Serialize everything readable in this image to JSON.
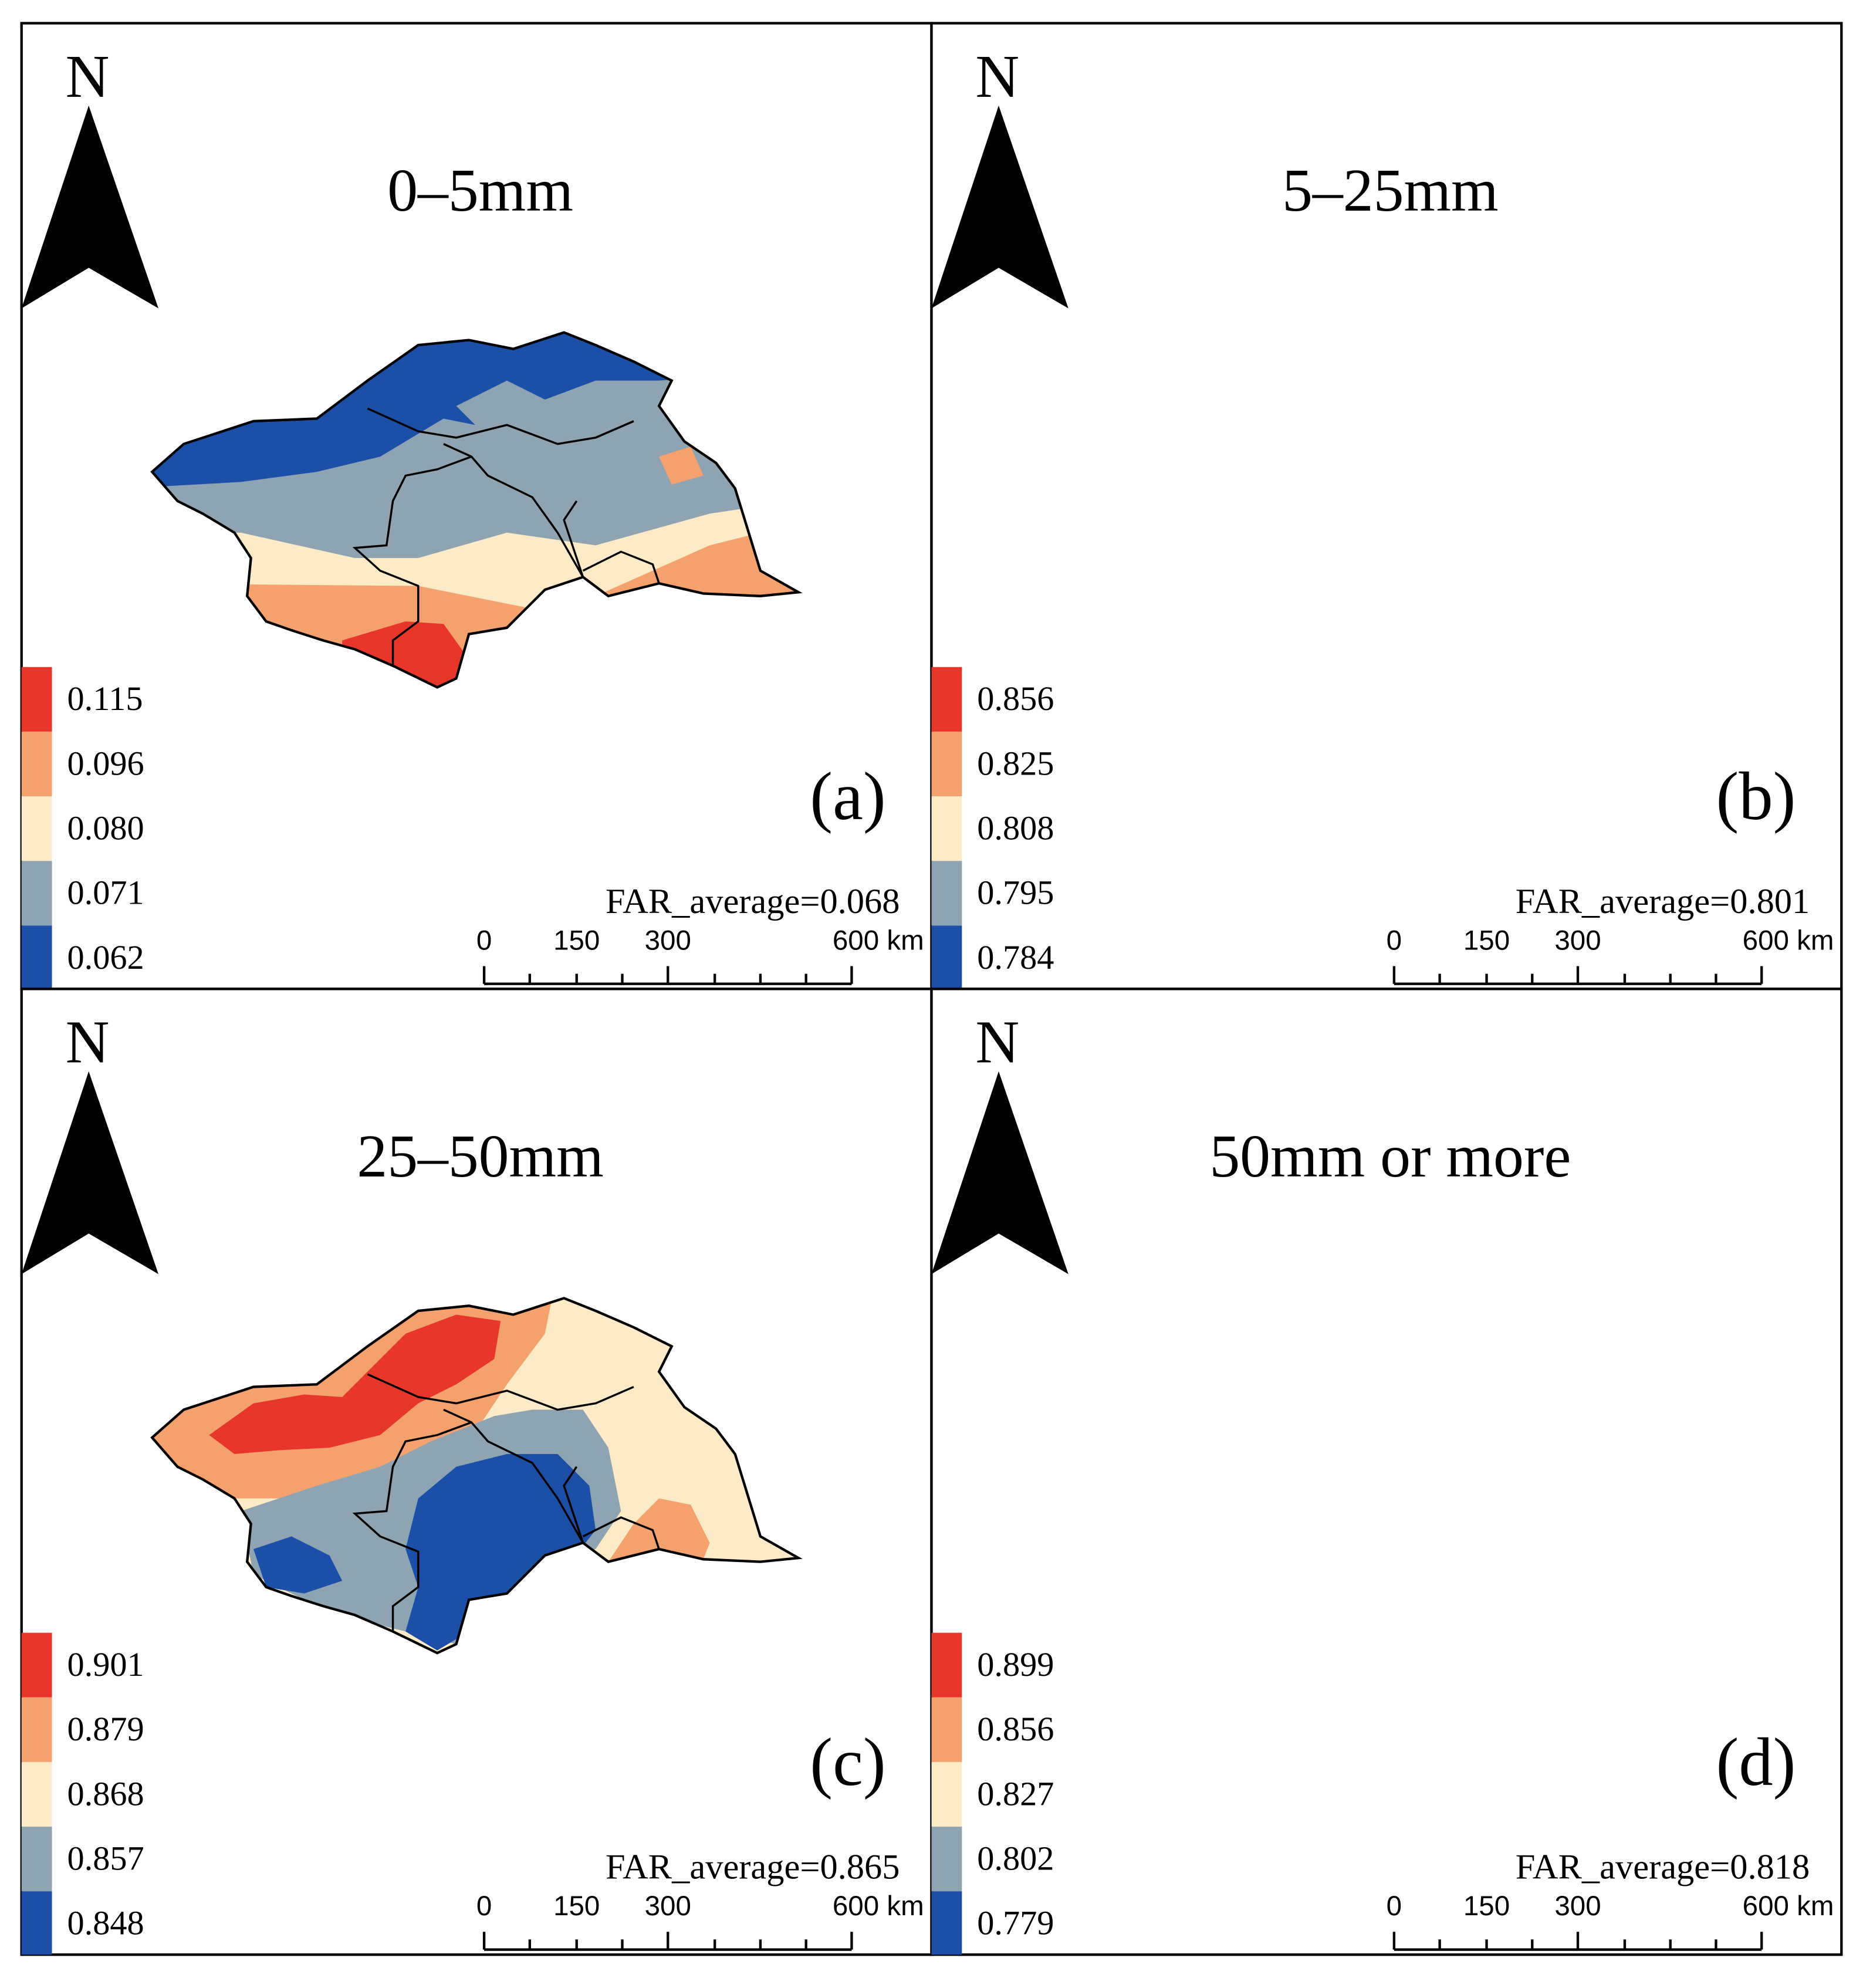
{
  "north_label": "N",
  "scale_bar": {
    "ticks": [
      "0",
      "150",
      "300",
      "600 km"
    ]
  },
  "colors": {
    "class1": "#e8362b",
    "class2": "#f4a16e",
    "class3": "#fdebc7",
    "class4": "#8fa4b2",
    "class5": "#1b4fa8",
    "border": "#000000"
  },
  "panels": [
    {
      "title": "0–5mm",
      "letter": "(a)",
      "average": "FAR_average=0.068",
      "legend": [
        "0.115",
        "0.096",
        "0.080",
        "0.071",
        "0.062"
      ]
    },
    {
      "title": "5–25mm",
      "letter": "(b)",
      "average": "FAR_average=0.801",
      "legend": [
        "0.856",
        "0.825",
        "0.808",
        "0.795",
        "0.784"
      ]
    },
    {
      "title": "25–50mm",
      "letter": "(c)",
      "average": "FAR_average=0.865",
      "legend": [
        "0.901",
        "0.879",
        "0.868",
        "0.857",
        "0.848"
      ]
    },
    {
      "title": "50mm or more",
      "letter": "(d)",
      "average": "FAR_average=0.818",
      "legend": [
        "0.899",
        "0.856",
        "0.827",
        "0.802",
        "0.779"
      ]
    }
  ]
}
